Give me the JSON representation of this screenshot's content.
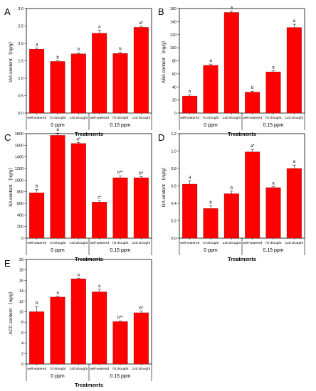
{
  "colors": {
    "bar": "#ff0000",
    "bar_edge": "#8b0000",
    "axis": "#000000"
  },
  "chart_data": [
    {
      "type": "bar",
      "panel": "A",
      "categories": [
        "well-watered",
        "7d drought",
        "14d drought",
        "well-watered",
        "7d drought",
        "14d drought"
      ],
      "groups": [
        "0 ppm",
        "0.15 ppm"
      ],
      "values": [
        1.83,
        1.48,
        1.7,
        2.29,
        1.71,
        2.46
      ],
      "errors": [
        0.04,
        0.02,
        0.03,
        0.09,
        0.03,
        0.03
      ],
      "sig": [
        "a",
        "b",
        "b",
        "a",
        "b",
        "a*"
      ],
      "xlabel": "Treatments",
      "ylabel": "IAA content （ng/g）",
      "ylim": [
        0,
        3.0
      ],
      "yticks": [
        "0.0",
        "0.5",
        "1.0",
        "1.5",
        "2.0",
        "2.5",
        "3.0"
      ]
    },
    {
      "type": "bar",
      "panel": "B",
      "categories": [
        "well-watered",
        "7d drought",
        "14d drought",
        "well-watered",
        "7d drought",
        "14d drought"
      ],
      "groups": [
        "0 ppm",
        "0.15 ppm"
      ],
      "values": [
        26,
        73,
        154,
        32,
        63,
        131
      ],
      "errors": [
        2,
        2,
        2,
        1.5,
        2,
        5
      ],
      "sig": [
        "b",
        "a",
        "a",
        "b",
        "a",
        "a"
      ],
      "xlabel": "Treatments",
      "ylabel": "ABA content （ng/g）",
      "ylim": [
        0,
        160
      ],
      "yticks": [
        "0",
        "20",
        "40",
        "60",
        "80",
        "100",
        "120",
        "140",
        "160"
      ]
    },
    {
      "type": "bar",
      "panel": "C",
      "categories": [
        "well-watered",
        "7d drought",
        "14d drought",
        "well-watered",
        "7d drought",
        "14d drought"
      ],
      "groups": [
        "0 ppm",
        "0.15 ppm"
      ],
      "values": [
        780,
        1770,
        1630,
        620,
        1040,
        1040
      ],
      "errors": [
        60,
        40,
        20,
        20,
        30,
        20
      ],
      "sig": [
        "b",
        "a",
        "a*",
        "c*",
        "b**",
        "b*"
      ],
      "xlabel": "Treatments",
      "ylabel": "SA content （ng/g）",
      "ylim": [
        0,
        1800
      ],
      "yticks": [
        "0",
        "200",
        "400",
        "600",
        "800",
        "1000",
        "1200",
        "1400",
        "1600",
        "1800"
      ]
    },
    {
      "type": "bar",
      "panel": "D",
      "categories": [
        "well-watered",
        "7d drought",
        "14d drought",
        "well-watered",
        "7d drought",
        "14d drought"
      ],
      "groups": [
        "0 ppm",
        "0.15 ppm"
      ],
      "values": [
        0.62,
        0.34,
        0.51,
        0.99,
        0.58,
        0.8
      ],
      "errors": [
        0.04,
        0.03,
        0.03,
        0.03,
        0.01,
        0.04
      ],
      "sig": [
        "a",
        "b",
        "b",
        "a*",
        "a",
        "a"
      ],
      "xlabel": "Treatments",
      "ylabel": "GA content （ng/g）",
      "ylim": [
        0,
        1.2
      ],
      "yticks": [
        "0.0",
        "0.2",
        "0.4",
        "0.6",
        "0.8",
        "1.0",
        "1.2"
      ]
    },
    {
      "type": "bar",
      "panel": "E",
      "categories": [
        "well-watered",
        "7d drought",
        "14d drought",
        "well-watered",
        "7d drought",
        "14d drought"
      ],
      "groups": [
        "0 ppm",
        "0.15 ppm"
      ],
      "values": [
        10.0,
        12.8,
        16.3,
        13.8,
        8.1,
        9.8
      ],
      "errors": [
        1.0,
        0.2,
        0.1,
        0.5,
        0.1,
        0.3
      ],
      "sig": [
        "b",
        "a",
        "a",
        "a",
        "b**",
        "b*"
      ],
      "xlabel": "Treatments",
      "ylabel": "ACC content （ng/g）",
      "ylim": [
        0,
        20
      ],
      "yticks": [
        "0",
        "2",
        "4",
        "6",
        "8",
        "10",
        "12",
        "14",
        "16",
        "18",
        "20"
      ]
    }
  ]
}
